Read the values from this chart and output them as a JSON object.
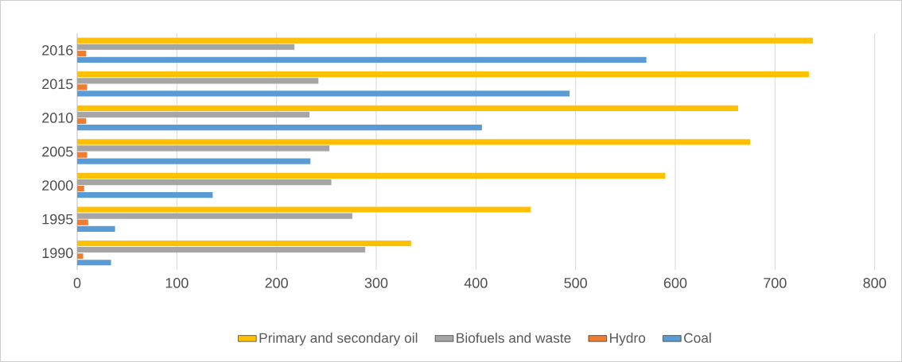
{
  "chart_data": {
    "type": "bar",
    "orientation": "horizontal",
    "categories": [
      "2016",
      "2015",
      "2010",
      "2005",
      "2000",
      "1995",
      "1990"
    ],
    "series": [
      {
        "name": "Primary and secondary oil",
        "color": "#ffc000",
        "values": [
          738,
          734,
          663,
          675,
          590,
          455,
          335
        ]
      },
      {
        "name": "Biofuels and waste",
        "color": "#a5a5a5",
        "values": [
          218,
          242,
          233,
          253,
          255,
          276,
          289
        ]
      },
      {
        "name": "Hydro",
        "color": "#ed7d31",
        "values": [
          9,
          10,
          9,
          10,
          7,
          11,
          6
        ]
      },
      {
        "name": "Coal",
        "color": "#5b9bd5",
        "values": [
          571,
          494,
          406,
          234,
          136,
          38,
          34
        ]
      }
    ],
    "xlim": [
      0,
      800
    ],
    "xticks": [
      0,
      100,
      200,
      300,
      400,
      500,
      600,
      700,
      800
    ],
    "grid": "x",
    "legend": "bottom"
  }
}
